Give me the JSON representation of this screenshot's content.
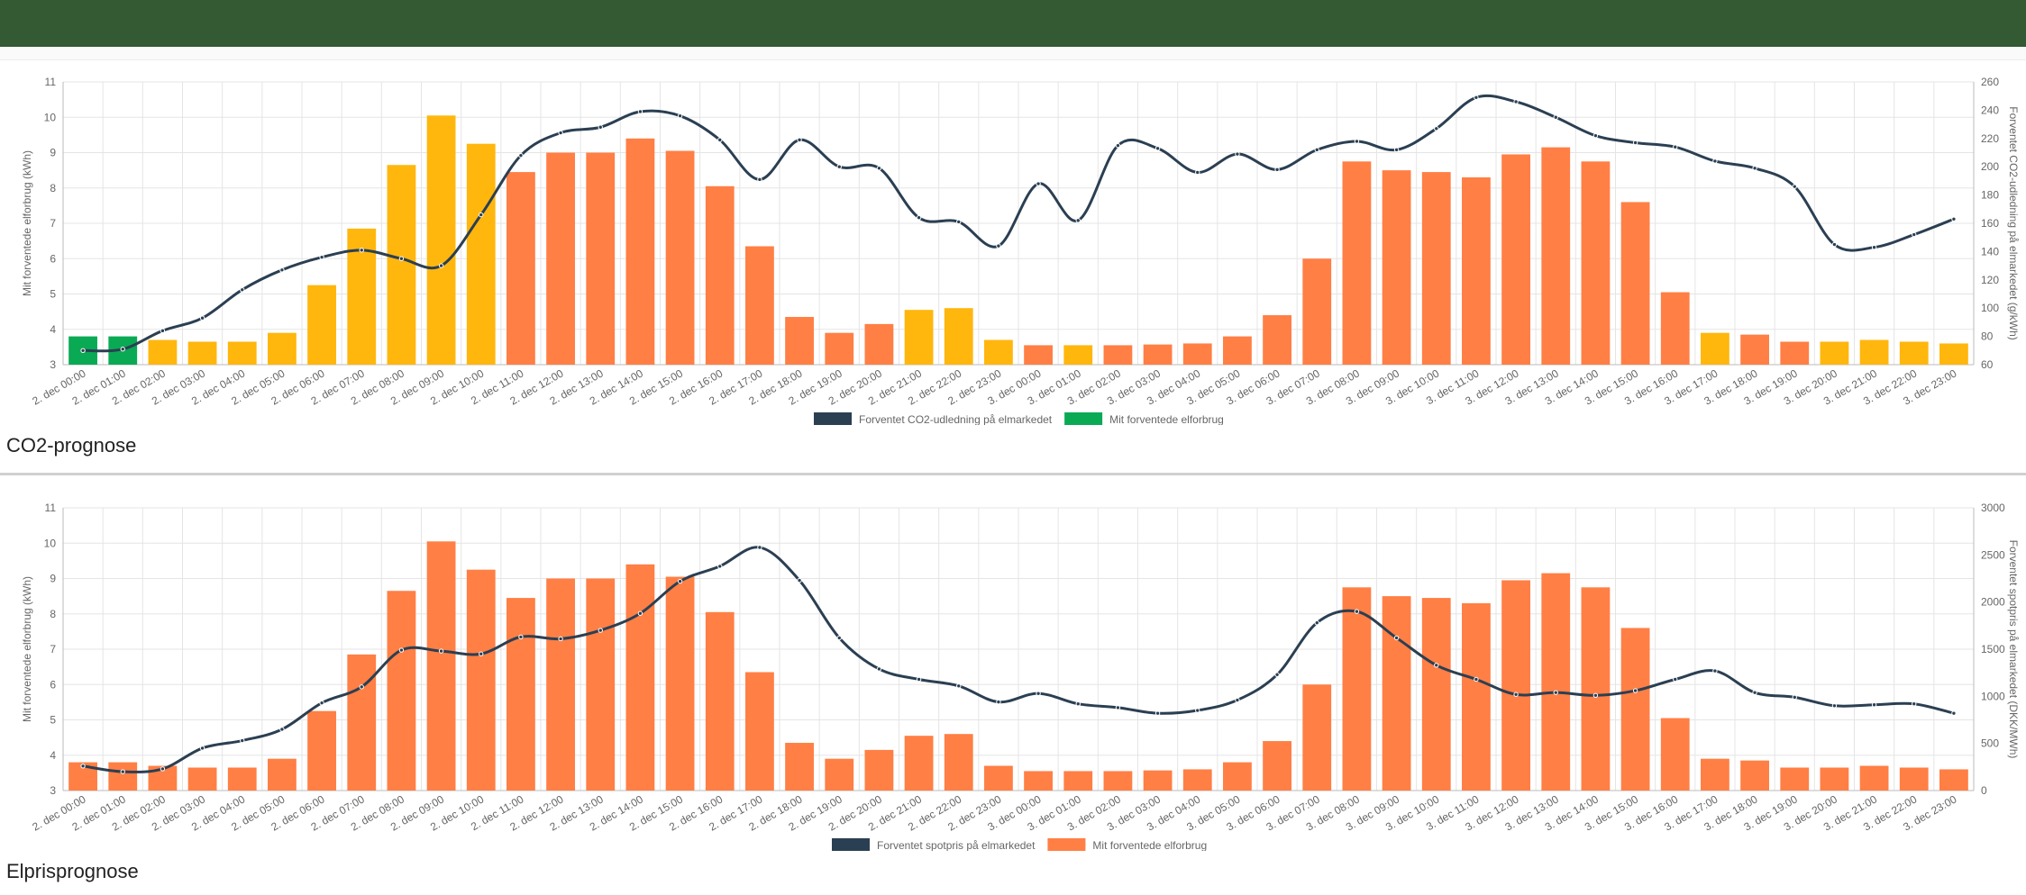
{
  "colors": {
    "header": "#335a33",
    "line": "#2b3f52",
    "bar_green": "#0aaa55",
    "bar_yellow": "#ffb70e",
    "bar_orange": "#ff7f45",
    "grid": "#e5e5e5"
  },
  "x_labels": [
    "2. dec 00:00",
    "2. dec 01:00",
    "2. dec 02:00",
    "2. dec 03:00",
    "2. dec 04:00",
    "2. dec 05:00",
    "2. dec 06:00",
    "2. dec 07:00",
    "2. dec 08:00",
    "2. dec 09:00",
    "2. dec 10:00",
    "2. dec 11:00",
    "2. dec 12:00",
    "2. dec 13:00",
    "2. dec 14:00",
    "2. dec 15:00",
    "2. dec 16:00",
    "2. dec 17:00",
    "2. dec 18:00",
    "2. dec 19:00",
    "2. dec 20:00",
    "2. dec 21:00",
    "2. dec 22:00",
    "2. dec 23:00",
    "3. dec 00:00",
    "3. dec 01:00",
    "3. dec 02:00",
    "3. dec 03:00",
    "3. dec 04:00",
    "3. dec 05:00",
    "3. dec 06:00",
    "3. dec 07:00",
    "3. dec 08:00",
    "3. dec 09:00",
    "3. dec 10:00",
    "3. dec 11:00",
    "3. dec 12:00",
    "3. dec 13:00",
    "3. dec 14:00",
    "3. dec 15:00",
    "3. dec 16:00",
    "3. dec 17:00",
    "3. dec 18:00",
    "3. dec 19:00",
    "3. dec 20:00",
    "3. dec 21:00",
    "3. dec 22:00",
    "3. dec 23:00"
  ],
  "consumption_kwh": [
    3.8,
    3.8,
    3.7,
    3.65,
    3.65,
    3.9,
    5.25,
    6.85,
    8.65,
    10.05,
    9.25,
    8.45,
    9.0,
    9.0,
    9.4,
    9.05,
    8.05,
    6.35,
    4.35,
    3.9,
    4.15,
    4.55,
    4.6,
    3.7,
    3.55,
    3.55,
    3.55,
    3.57,
    3.6,
    3.8,
    4.4,
    6.0,
    8.75,
    8.5,
    8.45,
    8.3,
    8.95,
    9.15,
    8.75,
    7.6,
    5.05,
    3.9,
    3.85,
    3.65,
    3.65,
    3.7,
    3.65,
    3.6
  ],
  "co2_bar_levels": [
    "green",
    "green",
    "yellow",
    "yellow",
    "yellow",
    "yellow",
    "yellow",
    "yellow",
    "yellow",
    "yellow",
    "yellow",
    "orange",
    "orange",
    "orange",
    "orange",
    "orange",
    "orange",
    "orange",
    "orange",
    "orange",
    "orange",
    "yellow",
    "yellow",
    "yellow",
    "orange",
    "yellow",
    "orange",
    "orange",
    "orange",
    "orange",
    "orange",
    "orange",
    "orange",
    "orange",
    "orange",
    "orange",
    "orange",
    "orange",
    "orange",
    "orange",
    "orange",
    "yellow",
    "orange",
    "orange",
    "yellow",
    "yellow",
    "yellow",
    "yellow"
  ],
  "chart_data": [
    {
      "type": "bar",
      "title": "CO2-prognose",
      "categories_ref": "x_labels",
      "series": [
        {
          "name": "Forventet CO2-udledning på elmarkedet",
          "kind": "line",
          "axis": "right",
          "values": [
            70,
            71,
            84,
            93,
            113,
            127,
            136,
            141,
            135,
            130,
            166,
            208,
            224,
            228,
            239,
            236,
            219,
            191,
            219,
            200,
            199,
            164,
            161,
            144,
            188,
            162,
            215,
            213,
            196,
            209,
            198,
            212,
            218,
            212,
            227,
            249,
            246,
            235,
            222,
            217,
            214,
            204,
            199,
            186,
            145,
            143,
            152,
            163
          ]
        },
        {
          "name": "Mit forventede elforbrug",
          "kind": "bar",
          "axis": "left",
          "values_ref": "consumption_kwh"
        }
      ],
      "ylabel": "Mit forventede elforbrug (kWh)",
      "y2label": "Forventet CO2-udledning på elmarkedet (g/kWh)",
      "ylim": [
        3,
        11
      ],
      "y2lim": [
        60,
        260
      ],
      "yticks": [
        3,
        4,
        5,
        6,
        7,
        8,
        9,
        10,
        11
      ],
      "y2ticks": [
        60,
        80,
        100,
        120,
        140,
        160,
        180,
        200,
        220,
        240,
        260
      ],
      "grid": true,
      "legend": "bottom"
    },
    {
      "type": "bar",
      "title": "Elprisprognose",
      "categories_ref": "x_labels",
      "series": [
        {
          "name": "Forventet spotpris på elmarkedet",
          "kind": "line",
          "axis": "right",
          "values": [
            260,
            200,
            230,
            450,
            530,
            650,
            930,
            1100,
            1490,
            1480,
            1450,
            1630,
            1610,
            1700,
            1880,
            2220,
            2380,
            2580,
            2230,
            1620,
            1290,
            1180,
            1110,
            940,
            1030,
            920,
            880,
            820,
            850,
            960,
            1230,
            1780,
            1900,
            1620,
            1330,
            1180,
            1020,
            1040,
            1010,
            1060,
            1180,
            1270,
            1040,
            990,
            900,
            910,
            920,
            820
          ]
        },
        {
          "name": "Mit forventede elforbrug",
          "kind": "bar",
          "axis": "left",
          "values_ref": "consumption_kwh"
        }
      ],
      "ylabel": "Mit forventede elforbrug (kWh)",
      "y2label": "Forventet spotpris på elmarkedet (DKK/MWh)",
      "ylim": [
        3,
        11
      ],
      "y2lim": [
        0,
        3000
      ],
      "yticks": [
        3,
        4,
        5,
        6,
        7,
        8,
        9,
        10,
        11
      ],
      "y2ticks": [
        0,
        500,
        1000,
        1500,
        2000,
        2500,
        3000
      ],
      "grid": true,
      "legend": "bottom"
    }
  ]
}
